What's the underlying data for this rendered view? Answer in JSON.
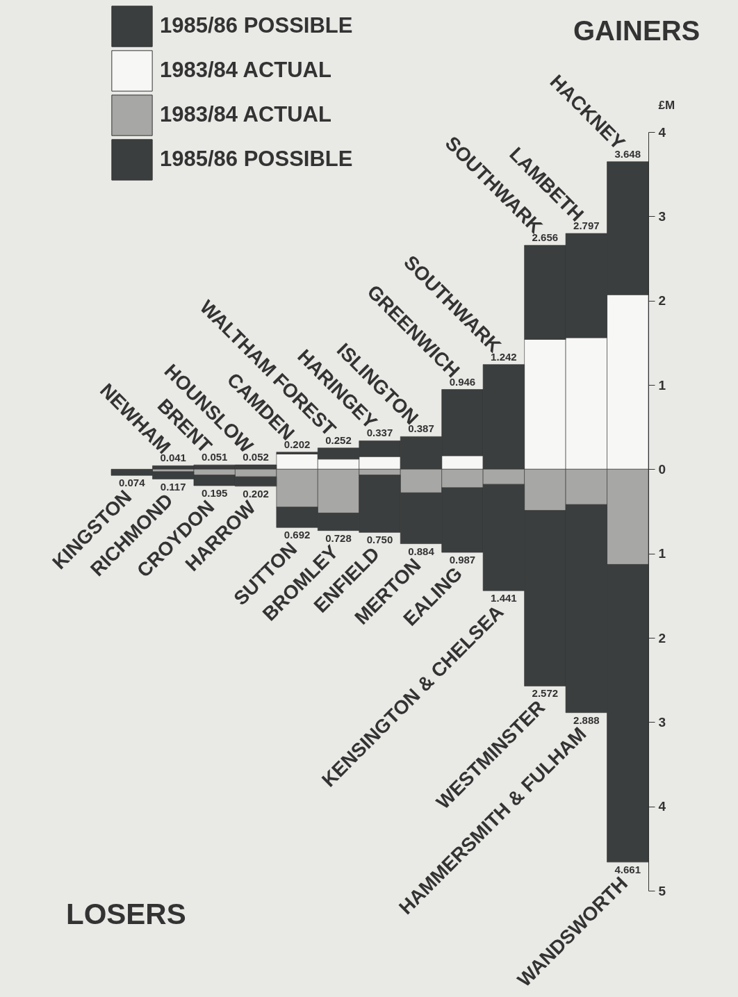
{
  "chart_data": {
    "type": "bar",
    "stacked": true,
    "title": "GAINERS",
    "ylabel": "£M",
    "legend": "top left",
    "categories": [
      "KINGSTON",
      "RICHMOND",
      "CROYDON",
      "HARROW",
      "SUTTON",
      "BROMLEY",
      "ENFIELD",
      "MERTON",
      "EALING",
      "KENSINGTON & CHELSEA",
      "WESTMINSTER",
      "HAMMERSMITH & FULHAM",
      "WANDSWORTH"
    ],
    "series": [
      {
        "name": "1983/84 ACTUAL",
        "color": "#f7f7f5",
        "values": [
          null,
          null,
          null,
          null,
          0.18,
          0.12,
          0.15,
          null,
          0.16,
          null,
          1.54,
          1.56,
          2.07
        ]
      },
      {
        "name": "1985/86 POSSIBLE",
        "color": "#3a3e3e",
        "values": [
          null,
          0.041,
          0.051,
          0.052,
          0.022,
          0.132,
          0.187,
          0.387,
          0.786,
          1.242,
          1.116,
          1.237,
          1.578
        ]
      },
      {
        "name": "1983/84 ACTUAL",
        "color": "#a7a7a5",
        "values": [
          null,
          -0.03,
          -0.07,
          -0.09,
          -0.45,
          -0.52,
          -0.07,
          -0.28,
          -0.22,
          -0.18,
          -0.49,
          -0.42,
          -1.13
        ]
      },
      {
        "name": "1985/86 POSSIBLE",
        "color": "#3a3e3e",
        "values": [
          -0.074,
          -0.087,
          -0.125,
          -0.112,
          -0.242,
          -0.208,
          -0.68,
          -0.604,
          -0.767,
          -1.261,
          -2.082,
          -2.468,
          -3.531
        ]
      }
    ],
    "totals": [
      [
        null,
        "0.074"
      ],
      [
        "0.041",
        "0.117"
      ],
      [
        "0.051",
        "0.195"
      ],
      [
        "0.052",
        "0.202"
      ],
      [
        "0.202",
        "0.692"
      ],
      [
        "0.252",
        "0.728"
      ],
      [
        "0.337",
        "0.750"
      ],
      [
        "0.387",
        "0.884"
      ],
      [
        "0.946",
        "0.987"
      ],
      [
        "1.242",
        "1.441"
      ],
      [
        "2.656",
        "2.572"
      ],
      [
        "2.797",
        "2.888"
      ],
      [
        "3.648",
        "4.661"
      ]
    ],
    "ylim": [
      -5,
      4
    ],
    "yticks": [
      4,
      3,
      2,
      1,
      0,
      {
        "value": -1,
        "label": "1"
      },
      {
        "value": -2,
        "label": "2"
      },
      {
        "value": -3,
        "label": "3"
      },
      {
        "value": -4,
        "label": "4"
      },
      {
        "value": -5,
        "label": "5"
      }
    ],
    "annotations": [
      "LOSERS",
      {
        "text": "NEWHAM",
        "x": "RICHMOND",
        "y": 0.041
      },
      {
        "text": "BRENT",
        "x": "CROYDON",
        "y": 0.051
      },
      {
        "text": "HOUNSLOW",
        "x": "HARROW",
        "y": 0.052
      },
      {
        "text": "CAMDEN",
        "x": "SUTTON",
        "y": 0.202
      },
      {
        "text": "WALTHAM FOREST",
        "x": "BROMLEY",
        "y": 0.252
      },
      {
        "text": "HARINGEY",
        "x": "ENFIELD",
        "y": 0.337
      },
      {
        "text": "ISLINGTON",
        "x": "MERTON",
        "y": 0.387
      },
      {
        "text": "GREENWICH",
        "x": "EALING",
        "y": 0.946
      },
      {
        "text": "SOUTHWARK",
        "x": "KENSINGTON & CHELSEA",
        "y": 1.242
      },
      {
        "text": "SOUTHWARK",
        "x": "WESTMINSTER",
        "y": 2.656
      },
      {
        "text": "LAMBETH",
        "x": "HAMMERSMITH & FULHAM",
        "y": 2.797
      },
      {
        "text": "HACKNEY",
        "x": "WANDSWORTH",
        "y": 3.648
      }
    ]
  }
}
